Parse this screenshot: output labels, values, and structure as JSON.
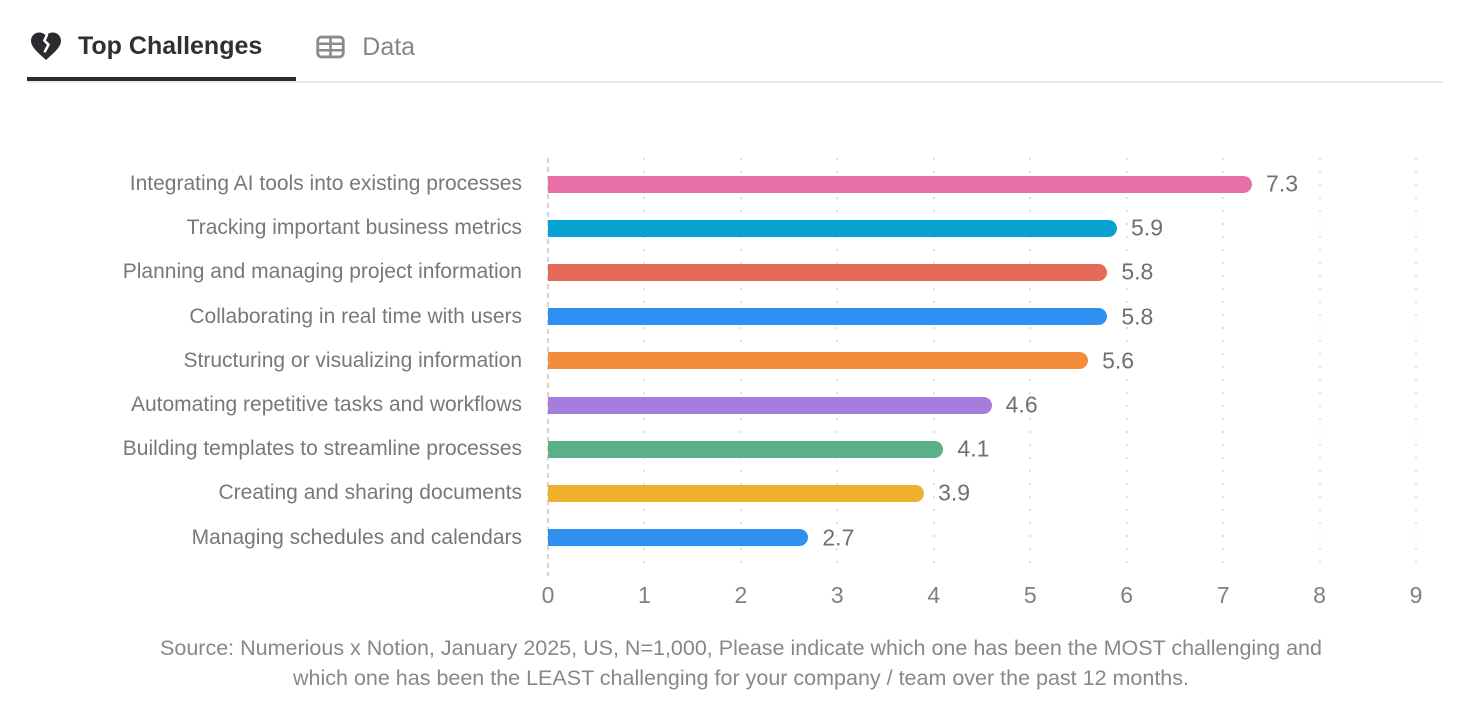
{
  "tabs": [
    {
      "label": "Top Challenges",
      "icon": "broken-heart-icon",
      "active": true
    },
    {
      "label": "Data",
      "icon": "table-icon",
      "active": false
    }
  ],
  "chart_data": {
    "type": "bar",
    "orientation": "horizontal",
    "title": "",
    "categories": [
      "Integrating AI tools into existing processes",
      "Tracking important business metrics",
      "Planning and managing project information",
      "Collaborating in real time with users",
      "Structuring or visualizing information",
      "Automating repetitive tasks and workflows",
      "Building templates to streamline processes",
      "Creating and sharing documents",
      "Managing schedules and calendars"
    ],
    "values": [
      7.3,
      5.9,
      5.8,
      5.8,
      5.6,
      4.6,
      4.1,
      3.9,
      2.7
    ],
    "value_labels": [
      "7.3",
      "5.9",
      "5.8",
      "5.8",
      "5.6",
      "4.6",
      "4.1",
      "3.9",
      "2.7"
    ],
    "bar_colors": [
      "#e870a7",
      "#06a3d2",
      "#e66a59",
      "#2e90f0",
      "#f18d3d",
      "#a57ddc",
      "#5bb087",
      "#efb02d",
      "#2e90f0"
    ],
    "xlim": [
      0,
      9
    ],
    "xticks": [
      "0",
      "1",
      "2",
      "3",
      "4",
      "5",
      "6",
      "7",
      "8",
      "9"
    ],
    "grid": "vertical-dotted",
    "legend": "none"
  },
  "source": {
    "line1": "Source: Numerious x Notion, January 2025, US, N=1,000, Please indicate which one has been the MOST challenging and",
    "line2": "which one has been the LEAST challenging for your company /  team over the past 12 months."
  },
  "colors": {
    "tab_active_text": "#2f3034",
    "tab_inactive_text": "#85868a",
    "tab_underline": "#2b2b2f",
    "tab_divider": "#ebebec",
    "category_label": "#75787d",
    "value_label": "#6e7075",
    "tick_label": "#7f8085",
    "source_text": "#87888c",
    "axis_line": "#d5d5d8",
    "gridline": "#e1e1e3",
    "background": "#ffffff"
  }
}
